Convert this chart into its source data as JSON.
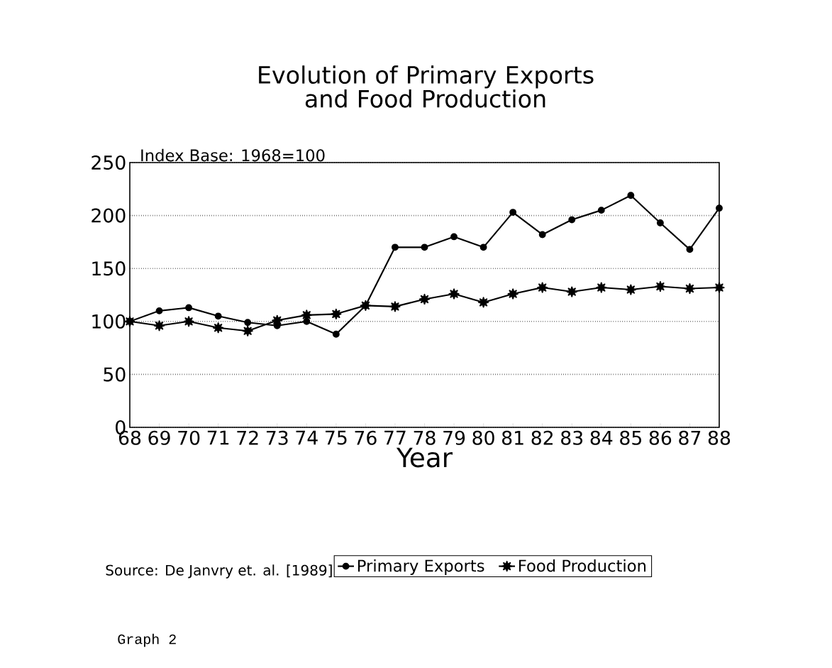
{
  "chart_data": {
    "type": "line",
    "title": "Evolution of Primary Exports and Food Production",
    "ylabel": "Index Base: 1968=100",
    "xlabel": "Year",
    "categories": [
      "68",
      "69",
      "70",
      "71",
      "72",
      "73",
      "74",
      "75",
      "76",
      "77",
      "78",
      "79",
      "80",
      "81",
      "82",
      "83",
      "84",
      "85",
      "86",
      "87",
      "88"
    ],
    "series": [
      {
        "name": "Primary Exports",
        "color": "#000000",
        "marker": "circle",
        "values": [
          100,
          110,
          113,
          105,
          99,
          96,
          100,
          88,
          115,
          170,
          170,
          180,
          170,
          203,
          182,
          196,
          205,
          219,
          193,
          168,
          207
        ]
      },
      {
        "name": "Food Production",
        "color": "#000000",
        "marker": "star",
        "values": [
          100,
          96,
          100,
          94,
          91,
          101,
          106,
          107,
          115,
          114,
          121,
          126,
          118,
          126,
          132,
          128,
          132,
          130,
          133,
          131,
          132
        ]
      }
    ],
    "ylim": [
      0,
      250
    ],
    "yticks": [
      0,
      50,
      100,
      150,
      200,
      250
    ],
    "grid": "y",
    "legend": "bottom",
    "line_style": "solid",
    "annotations": [
      "Source: De Janvry et. al. [1989]",
      "Graph  2"
    ]
  }
}
